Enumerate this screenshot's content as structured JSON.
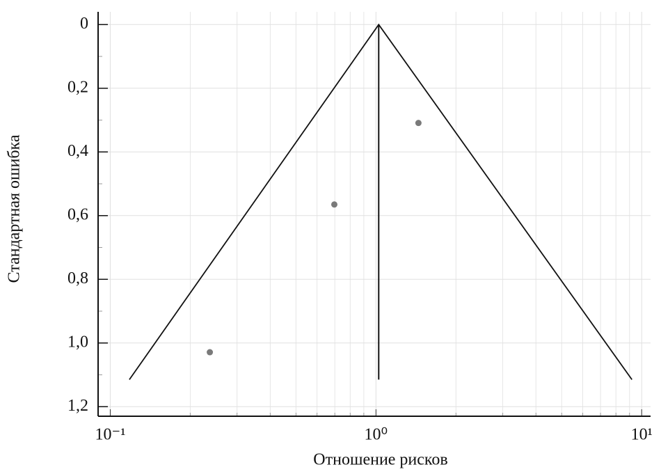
{
  "chart_data": {
    "type": "funnel",
    "x_label": "Отношение рисков",
    "y_label": "Стандартная ошибка",
    "x_scale": "log",
    "y_inverted": true,
    "grid": true,
    "xlim": [
      0.09,
      10.8
    ],
    "ylim": [
      -0.04,
      1.23
    ],
    "xticks": [
      {
        "value": 0.1,
        "label": "10⁻¹"
      },
      {
        "value": 1,
        "label": "10⁰"
      },
      {
        "value": 10,
        "label": "10¹"
      }
    ],
    "xminorticks": [
      0.2,
      0.3,
      0.4,
      0.5,
      0.6,
      0.7,
      0.8,
      0.9,
      2,
      3,
      4,
      5,
      6,
      7,
      8,
      9
    ],
    "yticks": [
      0,
      {
        "value": 0.2,
        "label": "0,2"
      },
      {
        "value": 0.4,
        "label": "0,4"
      },
      {
        "value": 0.6,
        "label": "0,6"
      },
      {
        "value": 0.8,
        "label": "0,8"
      },
      {
        "value": 1.0,
        "label": "1,0"
      },
      {
        "value": 1.2,
        "label": "1,2"
      }
    ],
    "yminorticks": [
      0.1,
      0.3,
      0.5,
      0.7,
      0.9,
      1.1
    ],
    "series": [
      {
        "color": "#7a7a7a",
        "x": [
          0.237,
          0.697,
          1.445
        ],
        "values": [
          1.029,
          0.565,
          0.309
        ]
      }
    ],
    "pooled_estimate": 1.024,
    "funnel": {
      "x": [
        0.118,
        1.024,
        9.19
      ],
      "y": [
        1.115,
        0,
        1.115
      ]
    }
  }
}
